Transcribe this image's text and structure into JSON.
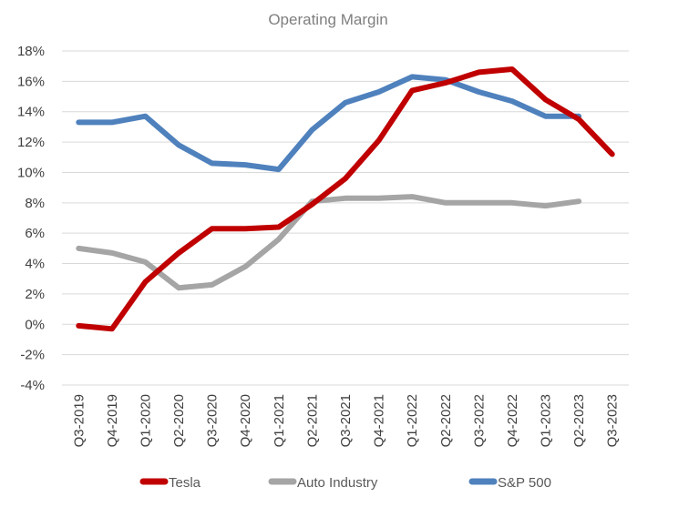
{
  "chart_data": {
    "type": "line",
    "title": "Operating Margin",
    "xlabel": "",
    "ylabel": "",
    "categories": [
      "Q3-2019",
      "Q4-2019",
      "Q1-2020",
      "Q2-2020",
      "Q3-2020",
      "Q4-2020",
      "Q1-2021",
      "Q2-2021",
      "Q3-2021",
      "Q4-2021",
      "Q1-2022",
      "Q2-2022",
      "Q3-2022",
      "Q4-2022",
      "Q1-2023",
      "Q2-2023",
      "Q3-2023"
    ],
    "y_ticks": [
      "18%",
      "16%",
      "14%",
      "12%",
      "10%",
      "8%",
      "6%",
      "4%",
      "2%",
      "0%",
      "-2%",
      "-4%"
    ],
    "ylim": [
      -4,
      18
    ],
    "grid": true,
    "legend_position": "bottom",
    "series": [
      {
        "name": "Tesla",
        "color": "#c00000",
        "values": [
          -0.1,
          -0.3,
          2.8,
          4.7,
          6.3,
          6.3,
          6.4,
          7.9,
          9.6,
          12.1,
          15.4,
          15.9,
          16.6,
          16.8,
          14.8,
          13.5,
          11.2
        ]
      },
      {
        "name": "Auto Industry",
        "color": "#a5a5a5",
        "values": [
          5.0,
          4.7,
          4.1,
          2.4,
          2.6,
          3.8,
          5.6,
          8.1,
          8.3,
          8.3,
          8.4,
          8.0,
          8.0,
          8.0,
          7.8,
          8.1,
          null
        ]
      },
      {
        "name": "S&P 500",
        "color": "#4f81bd",
        "values": [
          13.3,
          13.3,
          13.7,
          11.8,
          10.6,
          10.5,
          10.2,
          12.8,
          14.6,
          15.3,
          16.3,
          16.1,
          15.3,
          14.7,
          13.7,
          13.7,
          null
        ]
      }
    ]
  }
}
